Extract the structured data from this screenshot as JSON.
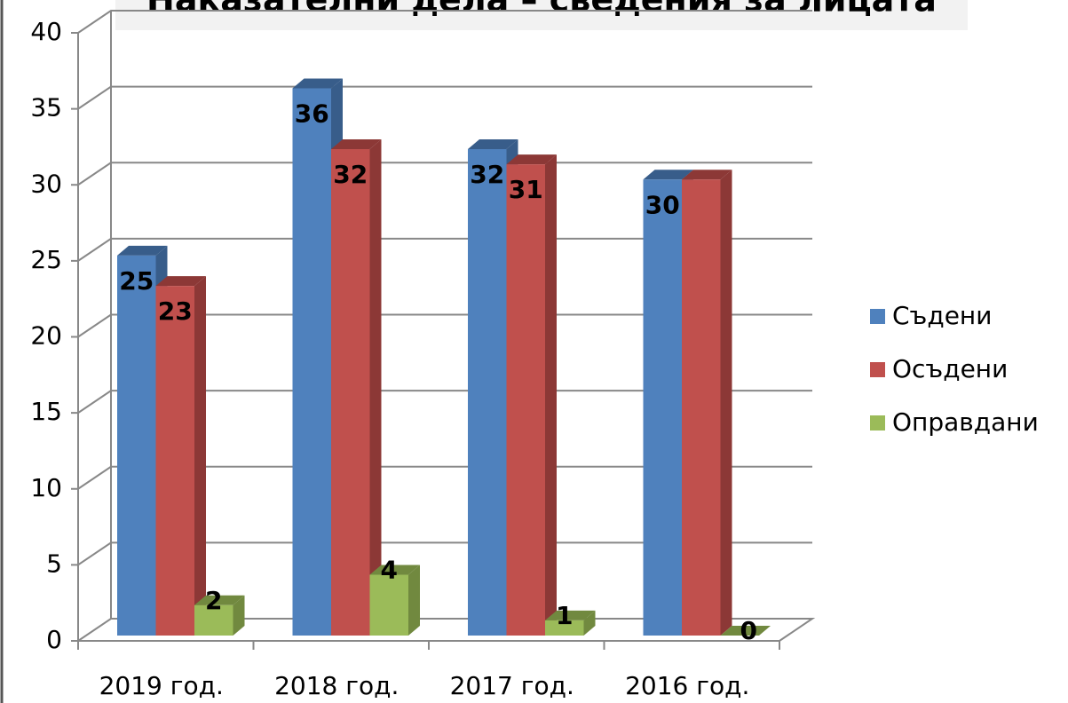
{
  "chart_data": {
    "type": "bar3d",
    "title": "Наказателни дела – сведения за лицата",
    "categories": [
      "2019 год.",
      "2018 год.",
      "2017 год.",
      "2016 год."
    ],
    "series": [
      {
        "name": "Съдени",
        "color": "#4f81bd",
        "side": "#385d8a",
        "values": [
          25,
          36,
          32,
          30
        ]
      },
      {
        "name": "Осъдени",
        "color": "#c0504d",
        "side": "#8c3836",
        "values": [
          23,
          32,
          31,
          30
        ],
        "value_labels": [
          "23",
          "32",
          "31",
          null
        ]
      },
      {
        "name": "Оправдани",
        "color": "#9bbb59",
        "side": "#71893f",
        "values": [
          2,
          4,
          1,
          0
        ]
      }
    ],
    "ylim": [
      0,
      40
    ],
    "yticks": [
      0,
      5,
      10,
      15,
      20,
      25,
      30,
      35,
      40
    ],
    "grid": true,
    "legend": "right"
  }
}
